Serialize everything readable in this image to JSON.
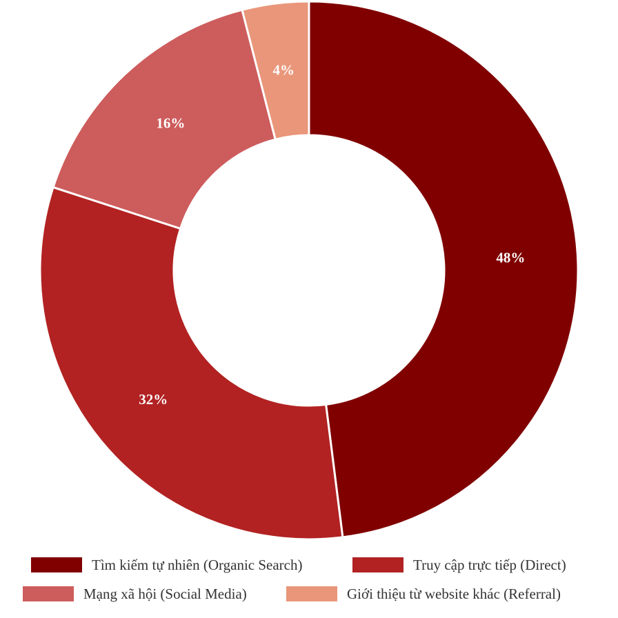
{
  "chart_data": {
    "type": "pie",
    "donut": true,
    "title": "",
    "categories": [
      "Tìm kiếm tự nhiên (Organic Search)",
      "Truy cập trực tiếp (Direct)",
      "Mạng xã hội (Social Media)",
      "Giới thiệu từ website khác (Referral)"
    ],
    "values": [
      48,
      32,
      16,
      4
    ],
    "labels": [
      "48%",
      "32%",
      "16%",
      "4%"
    ],
    "colors": [
      "#800000",
      "#b22222",
      "#cd5c5c",
      "#e9967a"
    ],
    "legend_position": "bottom"
  }
}
